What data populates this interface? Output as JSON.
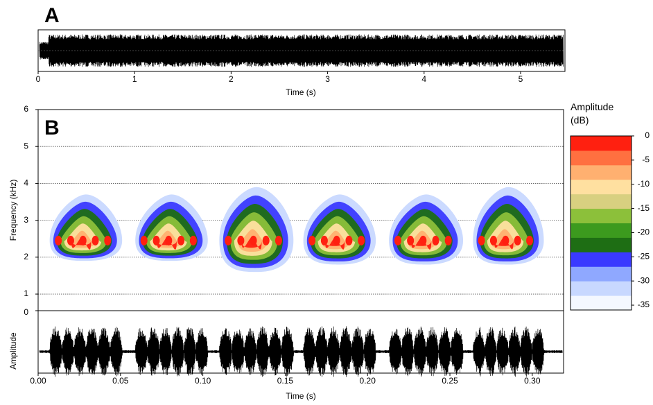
{
  "chart_data": [
    {
      "type": "waveform",
      "panel_label": "A",
      "xlabel": "Time (s)",
      "xlim": [
        0,
        5.46
      ],
      "xticks": [
        0,
        1,
        2,
        3,
        4,
        5
      ],
      "color": "#000000"
    },
    {
      "type": "spectrogram",
      "panel_label": "B",
      "ylabel": "Frequency (kHz)",
      "xlim": [
        0,
        0.319
      ],
      "ylim": [
        0.55,
        6
      ],
      "yticks": [
        1,
        2,
        3,
        4,
        5,
        6
      ],
      "grid": true,
      "x_start": [
        0.007,
        0.059,
        0.11,
        0.161,
        0.213,
        0.264
      ],
      "x_end": [
        0.051,
        0.103,
        0.155,
        0.205,
        0.258,
        0.307
      ],
      "freq_low": [
        1.9,
        1.9,
        1.6,
        1.8,
        1.8,
        1.8
      ],
      "freq_high": [
        3.7,
        3.7,
        3.9,
        3.7,
        3.7,
        3.9
      ]
    },
    {
      "type": "waveform",
      "ylabel": "Amplitude",
      "yticks": [
        0
      ],
      "ylim": [
        -1,
        0
      ],
      "xlabel": "Time (s)",
      "xlim": [
        0,
        0.319
      ],
      "xticks": [
        {
          "value": 0,
          "label": "0.00"
        },
        {
          "value": 0.05,
          "label": "0.05"
        },
        {
          "value": 0.1,
          "label": "0.10"
        },
        {
          "value": 0.15,
          "label": "0.15"
        },
        {
          "value": 0.2,
          "label": "0.20"
        },
        {
          "value": 0.25,
          "label": "0.25"
        },
        {
          "value": 0.3,
          "label": "0.30"
        }
      ],
      "color": "#000000"
    },
    {
      "type": "colorbar",
      "title": "Amplitude (dB)",
      "ylim": [
        -36,
        0
      ],
      "yticks": [
        0,
        -5,
        -10,
        -15,
        -20,
        -25,
        -30,
        -35
      ],
      "colormap": [
        "#f4f8ff",
        "#c8d8ff",
        "#8fa8ff",
        "#3a3aff",
        "#1e6e14",
        "#3c9a1e",
        "#8cc03a",
        "#d8d080",
        "#ffe0a0",
        "#ffb070",
        "#ff7040",
        "#ff2010"
      ]
    }
  ]
}
